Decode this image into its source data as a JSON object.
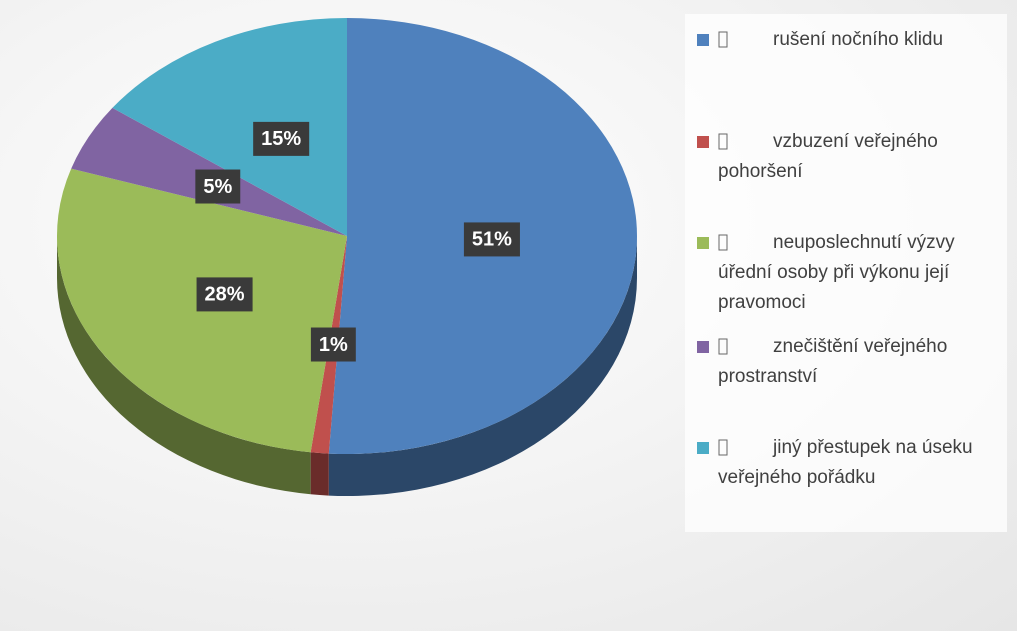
{
  "chart_data": {
    "type": "pie3d",
    "categories": [
      "rušení nočního klidu",
      "vzbuzení veřejného pohoršení",
      "neuposlechnutí výzvy úřední osoby při výkonu její pravomoci",
      "znečištění veřejného prostranství",
      "jiný přestupek na úseku veřejného pořádku"
    ],
    "values": [
      51,
      1,
      28,
      5,
      15
    ],
    "value_labels": [
      "51%",
      "1%",
      "28%",
      "5%",
      "15%"
    ],
    "colors": [
      "#4f81bd",
      "#c0504d",
      "#9bbb59",
      "#8064a2",
      "#4bacc6"
    ],
    "legend": "right"
  }
}
